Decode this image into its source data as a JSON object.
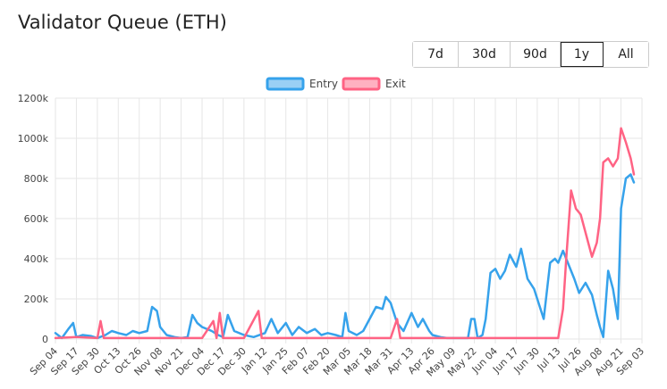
{
  "header": {
    "title": "Validator Queue (ETH)"
  },
  "range_buttons": [
    {
      "label": "7d",
      "active": false
    },
    {
      "label": "30d",
      "active": false
    },
    {
      "label": "90d",
      "active": false
    },
    {
      "label": "1y",
      "active": true
    },
    {
      "label": "All",
      "active": false
    }
  ],
  "colors": {
    "entry": "#36a2eb",
    "entry_fill": "#9ad0f5",
    "exit": "#ff6384",
    "exit_fill": "#ffb1c1",
    "grid": "#e6e6e6"
  },
  "chart_data": {
    "type": "line",
    "title": "",
    "xlabel": "",
    "ylabel": "",
    "ylim": [
      0,
      1200000
    ],
    "y_ticks": [
      0,
      200000,
      400000,
      600000,
      800000,
      1000000,
      1200000
    ],
    "y_tick_labels": [
      "0",
      "200k",
      "400k",
      "600k",
      "800k",
      "1000k",
      "1200k"
    ],
    "x_ticks": [
      "Sep 04",
      "Sep 17",
      "Sep 30",
      "Oct 13",
      "Oct 26",
      "Nov 08",
      "Nov 21",
      "Dec 04",
      "Dec 17",
      "Dec 30",
      "Jan 12",
      "Jan 25",
      "Feb 07",
      "Feb 20",
      "Mar 05",
      "Mar 18",
      "Mar 31",
      "Apr 13",
      "Apr 26",
      "May 09",
      "May 22",
      "Jun 04",
      "Jun 17",
      "Jun 30",
      "Jul 13",
      "Jul 26",
      "Aug 08",
      "Aug 21",
      "Sep 03"
    ],
    "legend": {
      "placement": "top-center"
    },
    "grid": true,
    "series": [
      {
        "name": "Entry",
        "points": [
          [
            "Sep 04",
            30000
          ],
          [
            "Sep 08",
            5000
          ],
          [
            "Sep 12",
            50000
          ],
          [
            "Sep 15",
            80000
          ],
          [
            "Sep 17",
            10000
          ],
          [
            "Sep 21",
            20000
          ],
          [
            "Sep 26",
            15000
          ],
          [
            "Sep 30",
            5000
          ],
          [
            "Oct 05",
            20000
          ],
          [
            "Oct 09",
            40000
          ],
          [
            "Oct 13",
            30000
          ],
          [
            "Oct 18",
            20000
          ],
          [
            "Oct 22",
            40000
          ],
          [
            "Oct 26",
            30000
          ],
          [
            "Oct 31",
            40000
          ],
          [
            "Nov 03",
            160000
          ],
          [
            "Nov 06",
            140000
          ],
          [
            "Nov 08",
            60000
          ],
          [
            "Nov 12",
            20000
          ],
          [
            "Nov 17",
            10000
          ],
          [
            "Nov 21",
            5000
          ],
          [
            "Nov 25",
            10000
          ],
          [
            "Nov 28",
            120000
          ],
          [
            "Dec 01",
            80000
          ],
          [
            "Dec 04",
            60000
          ],
          [
            "Dec 10",
            40000
          ],
          [
            "Dec 14",
            20000
          ],
          [
            "Dec 17",
            10000
          ],
          [
            "Dec 20",
            120000
          ],
          [
            "Dec 24",
            40000
          ],
          [
            "Dec 30",
            20000
          ],
          [
            "Jan 05",
            10000
          ],
          [
            "Jan 12",
            30000
          ],
          [
            "Jan 16",
            100000
          ],
          [
            "Jan 20",
            30000
          ],
          [
            "Jan 25",
            80000
          ],
          [
            "Jan 29",
            20000
          ],
          [
            "Feb 02",
            60000
          ],
          [
            "Feb 07",
            30000
          ],
          [
            "Feb 12",
            50000
          ],
          [
            "Feb 16",
            20000
          ],
          [
            "Feb 20",
            30000
          ],
          [
            "Feb 25",
            20000
          ],
          [
            "Mar 01",
            10000
          ],
          [
            "Mar 03",
            130000
          ],
          [
            "Mar 05",
            40000
          ],
          [
            "Mar 10",
            20000
          ],
          [
            "Mar 14",
            40000
          ],
          [
            "Mar 18",
            100000
          ],
          [
            "Mar 22",
            160000
          ],
          [
            "Mar 26",
            150000
          ],
          [
            "Mar 28",
            210000
          ],
          [
            "Mar 31",
            180000
          ],
          [
            "Apr 04",
            80000
          ],
          [
            "Apr 08",
            40000
          ],
          [
            "Apr 13",
            130000
          ],
          [
            "Apr 17",
            60000
          ],
          [
            "Apr 20",
            100000
          ],
          [
            "Apr 24",
            40000
          ],
          [
            "Apr 26",
            20000
          ],
          [
            "May 01",
            10000
          ],
          [
            "May 05",
            5000
          ],
          [
            "May 09",
            5000
          ],
          [
            "May 14",
            5000
          ],
          [
            "May 18",
            5000
          ],
          [
            "May 20",
            100000
          ],
          [
            "May 22",
            100000
          ],
          [
            "May 24",
            5000
          ],
          [
            "May 27",
            20000
          ],
          [
            "May 29",
            100000
          ],
          [
            "Jun 01",
            330000
          ],
          [
            "Jun 04",
            350000
          ],
          [
            "Jun 07",
            300000
          ],
          [
            "Jun 10",
            340000
          ],
          [
            "Jun 13",
            420000
          ],
          [
            "Jun 17",
            360000
          ],
          [
            "Jun 20",
            450000
          ],
          [
            "Jun 24",
            300000
          ],
          [
            "Jun 28",
            250000
          ],
          [
            "Jun 30",
            200000
          ],
          [
            "Jul 04",
            100000
          ],
          [
            "Jul 08",
            380000
          ],
          [
            "Jul 11",
            400000
          ],
          [
            "Jul 13",
            380000
          ],
          [
            "Jul 16",
            440000
          ],
          [
            "Jul 20",
            360000
          ],
          [
            "Jul 23",
            300000
          ],
          [
            "Jul 26",
            230000
          ],
          [
            "Jul 30",
            280000
          ],
          [
            "Aug 03",
            220000
          ],
          [
            "Aug 06",
            120000
          ],
          [
            "Aug 08",
            60000
          ],
          [
            "Aug 10",
            10000
          ],
          [
            "Aug 13",
            340000
          ],
          [
            "Aug 16",
            250000
          ],
          [
            "Aug 19",
            100000
          ],
          [
            "Aug 21",
            650000
          ],
          [
            "Aug 24",
            800000
          ],
          [
            "Aug 27",
            820000
          ],
          [
            "Aug 29",
            780000
          ]
        ]
      },
      {
        "name": "Exit",
        "points": [
          [
            "Sep 04",
            5000
          ],
          [
            "Sep 17",
            10000
          ],
          [
            "Sep 30",
            5000
          ],
          [
            "Oct 02",
            90000
          ],
          [
            "Oct 04",
            5000
          ],
          [
            "Oct 13",
            5000
          ],
          [
            "Oct 26",
            5000
          ],
          [
            "Nov 08",
            5000
          ],
          [
            "Nov 21",
            5000
          ],
          [
            "Dec 04",
            5000
          ],
          [
            "Dec 11",
            90000
          ],
          [
            "Dec 13",
            5000
          ],
          [
            "Dec 15",
            130000
          ],
          [
            "Dec 17",
            5000
          ],
          [
            "Dec 30",
            5000
          ],
          [
            "Jan 08",
            140000
          ],
          [
            "Jan 10",
            5000
          ],
          [
            "Jan 25",
            5000
          ],
          [
            "Feb 07",
            5000
          ],
          [
            "Feb 20",
            5000
          ],
          [
            "Mar 05",
            5000
          ],
          [
            "Mar 18",
            5000
          ],
          [
            "Mar 31",
            5000
          ],
          [
            "Apr 04",
            100000
          ],
          [
            "Apr 06",
            5000
          ],
          [
            "Apr 13",
            5000
          ],
          [
            "Apr 26",
            5000
          ],
          [
            "May 09",
            5000
          ],
          [
            "May 22",
            5000
          ],
          [
            "Jun 04",
            5000
          ],
          [
            "Jun 17",
            5000
          ],
          [
            "Jun 30",
            5000
          ],
          [
            "Jul 13",
            5000
          ],
          [
            "Jul 16",
            150000
          ],
          [
            "Jul 18",
            400000
          ],
          [
            "Jul 21",
            740000
          ],
          [
            "Jul 24",
            650000
          ],
          [
            "Jul 27",
            620000
          ],
          [
            "Jul 31",
            500000
          ],
          [
            "Aug 03",
            410000
          ],
          [
            "Aug 06",
            480000
          ],
          [
            "Aug 08",
            600000
          ],
          [
            "Aug 10",
            880000
          ],
          [
            "Aug 13",
            900000
          ],
          [
            "Aug 16",
            860000
          ],
          [
            "Aug 19",
            900000
          ],
          [
            "Aug 21",
            1050000
          ],
          [
            "Aug 24",
            980000
          ],
          [
            "Aug 27",
            900000
          ],
          [
            "Aug 29",
            820000
          ]
        ]
      }
    ]
  }
}
